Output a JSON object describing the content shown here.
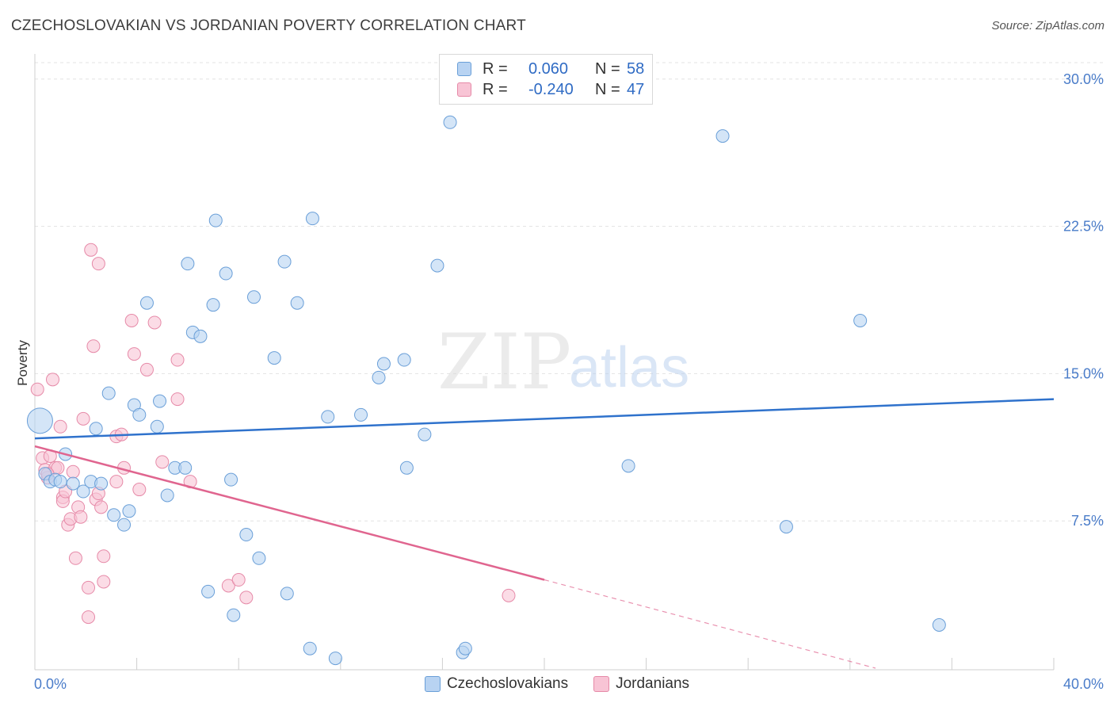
{
  "title": "CZECHOSLOVAKIAN VS JORDANIAN POVERTY CORRELATION CHART",
  "source": "Source: ZipAtlas.com",
  "watermark": {
    "zip": "ZIP",
    "atlas": "atlas"
  },
  "legend": {
    "rows": [
      {
        "r_label": "R =",
        "r_value": "0.060",
        "n_label": "N =",
        "n_value": "58"
      },
      {
        "r_label": "R =",
        "r_value": "-0.240",
        "n_label": "N =",
        "n_value": "47"
      }
    ]
  },
  "bottom_legend": {
    "series1": "Czechoslovakians",
    "series2": "Jordanians"
  },
  "colors": {
    "blue_fill": "#b8d3f2",
    "blue_stroke": "#6a9fd8",
    "blue_line": "#2f72cc",
    "pink_fill": "#f8c4d5",
    "pink_stroke": "#e68aa8",
    "pink_line": "#e0658f",
    "grid": "#e3e3e3",
    "axis_text": "#4a7cc9"
  },
  "chart_data": {
    "type": "scatter",
    "title": "CZECHOSLOVAKIAN VS JORDANIAN POVERTY CORRELATION CHART",
    "xlabel": "",
    "ylabel": "Poverty",
    "xlim": [
      0,
      40
    ],
    "ylim": [
      0,
      31
    ],
    "x_tick_labels": [
      "0.0%",
      "40.0%"
    ],
    "y_ticks": [
      7.5,
      15.0,
      22.5,
      30.0
    ],
    "y_tick_labels": [
      "7.5%",
      "15.0%",
      "22.5%",
      "30.0%"
    ],
    "series": [
      {
        "name": "Czechoslovakians",
        "R": 0.06,
        "N": 58,
        "trend": {
          "x0": 0,
          "y0": 11.7,
          "x1": 40,
          "y1": 13.7
        },
        "points": [
          [
            0.2,
            12.6
          ],
          [
            0.4,
            9.9
          ],
          [
            0.6,
            9.5
          ],
          [
            0.8,
            9.6
          ],
          [
            1.0,
            9.5
          ],
          [
            1.2,
            10.9
          ],
          [
            1.5,
            9.4
          ],
          [
            1.9,
            9.0
          ],
          [
            2.2,
            9.5
          ],
          [
            2.6,
            9.4
          ],
          [
            2.4,
            12.2
          ],
          [
            2.9,
            14.0
          ],
          [
            3.1,
            7.8
          ],
          [
            3.5,
            7.3
          ],
          [
            3.7,
            8.0
          ],
          [
            3.9,
            13.4
          ],
          [
            4.1,
            12.9
          ],
          [
            4.4,
            18.6
          ],
          [
            4.8,
            12.3
          ],
          [
            4.9,
            13.6
          ],
          [
            5.2,
            8.8
          ],
          [
            5.5,
            10.2
          ],
          [
            5.9,
            10.2
          ],
          [
            6.0,
            20.6
          ],
          [
            6.2,
            17.1
          ],
          [
            6.5,
            16.9
          ],
          [
            6.8,
            3.9
          ],
          [
            7.0,
            18.5
          ],
          [
            7.1,
            22.8
          ],
          [
            7.5,
            20.1
          ],
          [
            7.7,
            9.6
          ],
          [
            7.8,
            2.7
          ],
          [
            8.3,
            6.8
          ],
          [
            8.6,
            18.9
          ],
          [
            8.8,
            5.6
          ],
          [
            9.4,
            15.8
          ],
          [
            9.8,
            20.7
          ],
          [
            9.9,
            3.8
          ],
          [
            10.3,
            18.6
          ],
          [
            10.8,
            1.0
          ],
          [
            10.9,
            22.9
          ],
          [
            11.5,
            12.8
          ],
          [
            11.8,
            0.5
          ],
          [
            12.8,
            12.9
          ],
          [
            13.5,
            14.8
          ],
          [
            13.7,
            15.5
          ],
          [
            14.5,
            15.7
          ],
          [
            14.6,
            10.2
          ],
          [
            15.3,
            11.9
          ],
          [
            15.8,
            20.5
          ],
          [
            16.3,
            27.8
          ],
          [
            16.8,
            0.8
          ],
          [
            16.9,
            1.0
          ],
          [
            23.3,
            10.3
          ],
          [
            27.0,
            27.1
          ],
          [
            29.5,
            7.2
          ],
          [
            32.4,
            17.7
          ],
          [
            35.5,
            2.2
          ]
        ]
      },
      {
        "name": "Jordanians",
        "R": -0.24,
        "N": 47,
        "trend": {
          "x0": 0,
          "y0": 11.3,
          "x1": 20,
          "y1": 4.5
        },
        "trend_dashed_to": {
          "x": 33,
          "y": 0
        },
        "points": [
          [
            0.1,
            14.2
          ],
          [
            0.3,
            10.7
          ],
          [
            0.4,
            10.1
          ],
          [
            0.5,
            9.7
          ],
          [
            0.6,
            10.8
          ],
          [
            0.7,
            14.7
          ],
          [
            0.8,
            10.2
          ],
          [
            0.9,
            10.2
          ],
          [
            1.0,
            12.3
          ],
          [
            1.1,
            8.7
          ],
          [
            1.1,
            8.5
          ],
          [
            1.2,
            9.0
          ],
          [
            1.3,
            7.3
          ],
          [
            1.4,
            7.6
          ],
          [
            1.5,
            10.0
          ],
          [
            1.6,
            5.6
          ],
          [
            1.7,
            8.2
          ],
          [
            1.8,
            7.7
          ],
          [
            1.9,
            12.7
          ],
          [
            2.1,
            4.1
          ],
          [
            2.1,
            2.6
          ],
          [
            2.2,
            21.3
          ],
          [
            2.3,
            16.4
          ],
          [
            2.4,
            8.6
          ],
          [
            2.5,
            8.9
          ],
          [
            2.5,
            20.6
          ],
          [
            2.6,
            8.2
          ],
          [
            2.7,
            4.4
          ],
          [
            2.7,
            5.7
          ],
          [
            3.2,
            9.5
          ],
          [
            3.2,
            11.8
          ],
          [
            3.4,
            11.9
          ],
          [
            3.5,
            10.2
          ],
          [
            3.8,
            17.7
          ],
          [
            3.9,
            16.0
          ],
          [
            4.1,
            9.1
          ],
          [
            4.4,
            15.2
          ],
          [
            4.7,
            17.6
          ],
          [
            5.0,
            10.5
          ],
          [
            5.6,
            13.7
          ],
          [
            5.6,
            15.7
          ],
          [
            6.1,
            9.5
          ],
          [
            7.6,
            4.2
          ],
          [
            8.0,
            4.5
          ],
          [
            8.3,
            3.6
          ],
          [
            18.6,
            3.7
          ],
          [
            0.5,
            9.9
          ]
        ]
      }
    ]
  }
}
